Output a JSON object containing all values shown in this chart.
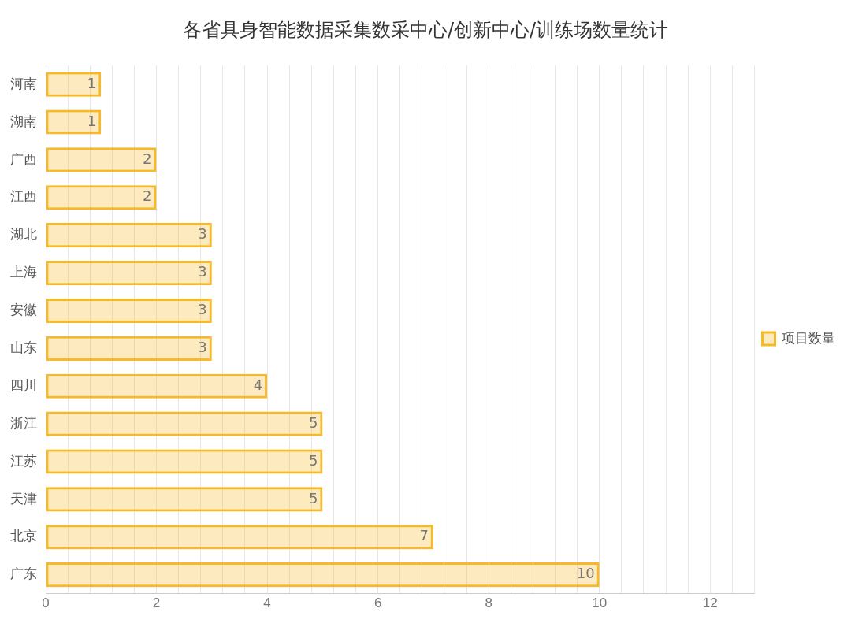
{
  "chart_data": {
    "type": "bar",
    "orientation": "horizontal",
    "title": "各省具身智能数据采集数采中心/创新中心/训练场数量统计",
    "categories": [
      "河南",
      "湖南",
      "广西",
      "江西",
      "湖北",
      "上海",
      "安徽",
      "山东",
      "四川",
      "浙江",
      "江苏",
      "天津",
      "北京",
      "广东"
    ],
    "series": [
      {
        "name": "项目数量",
        "color": "#f7b928",
        "values": [
          1,
          1,
          2,
          2,
          3,
          3,
          3,
          3,
          4,
          5,
          5,
          5,
          7,
          10
        ]
      }
    ],
    "xlim": [
      0,
      12.8
    ],
    "xticks": [
      0,
      {
        "value": 0.4,
        "label": null
      },
      {
        "value": 0.8,
        "label": null
      },
      {
        "value": 1.2,
        "label": null
      },
      {
        "value": 1.6,
        "label": null
      },
      2,
      {
        "value": 2.4,
        "label": null
      },
      {
        "value": 2.8,
        "label": null
      },
      {
        "value": 3.2,
        "label": null
      },
      {
        "value": 3.6,
        "label": null
      },
      4,
      {
        "value": 4.4,
        "label": null
      },
      {
        "value": 4.8,
        "label": null
      },
      {
        "value": 5.2,
        "label": null
      },
      {
        "value": 5.6,
        "label": null
      },
      6,
      {
        "value": 6.4,
        "label": null
      },
      {
        "value": 6.8,
        "label": null
      },
      {
        "value": 7.2,
        "label": null
      },
      {
        "value": 7.6,
        "label": null
      },
      8,
      {
        "value": 8.4,
        "label": null
      },
      {
        "value": 8.8,
        "label": null
      },
      {
        "value": 9.2,
        "label": null
      },
      {
        "value": 9.6,
        "label": null
      },
      10,
      {
        "value": 10.4,
        "label": null
      },
      {
        "value": 10.8,
        "label": null
      },
      {
        "value": 11.2,
        "label": null
      },
      {
        "value": 11.6,
        "label": null
      },
      12,
      {
        "value": 12.4,
        "label": null
      },
      {
        "value": 12.8,
        "label": null
      }
    ],
    "grid": "x",
    "legend": "right",
    "data_labels": true
  }
}
